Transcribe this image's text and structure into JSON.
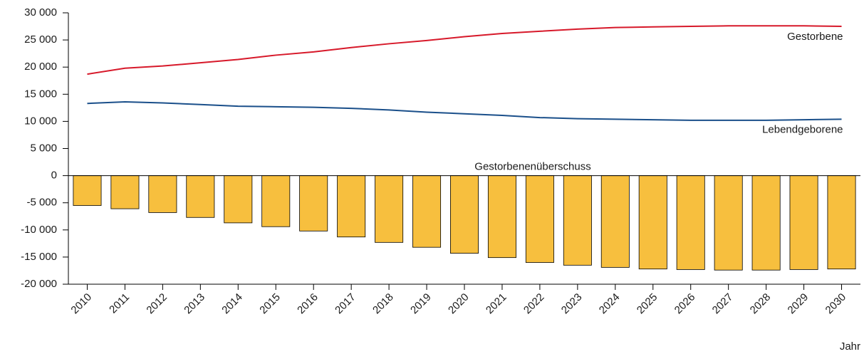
{
  "chart_data": {
    "type": "bar",
    "x_label": "Jahr",
    "categories": [
      "2010",
      "2011",
      "2012",
      "2013",
      "2014",
      "2015",
      "2016",
      "2017",
      "2018",
      "2019",
      "2020",
      "2021",
      "2022",
      "2023",
      "2024",
      "2025",
      "2026",
      "2027",
      "2028",
      "2029",
      "2030"
    ],
    "series": [
      {
        "name": "Gestorbenenüberschuss",
        "type": "bar",
        "color": "#f7bf3e",
        "values": [
          -5500,
          -6100,
          -6800,
          -7700,
          -8700,
          -9400,
          -10200,
          -11300,
          -12300,
          -13200,
          -14300,
          -15100,
          -16000,
          -16500,
          -16900,
          -17200,
          -17300,
          -17400,
          -17400,
          -17300,
          -17200
        ]
      },
      {
        "name": "Gestorbene",
        "type": "line",
        "color": "#d7192a",
        "values": [
          18700,
          19800,
          20200,
          20800,
          21400,
          22200,
          22800,
          23600,
          24300,
          24900,
          25600,
          26200,
          26600,
          27000,
          27300,
          27400,
          27500,
          27600,
          27600,
          27600,
          27500
        ]
      },
      {
        "name": "Lebendgeborene",
        "type": "line",
        "color": "#1a4f8a",
        "values": [
          13300,
          13600,
          13400,
          13100,
          12800,
          12700,
          12600,
          12400,
          12100,
          11700,
          11400,
          11100,
          10700,
          10500,
          10400,
          10300,
          10200,
          10200,
          10200,
          10300,
          10400
        ]
      }
    ],
    "ylim": [
      -20000,
      30000
    ],
    "yticks": [
      {
        "value": -20000,
        "label": "-20 000"
      },
      {
        "value": -15000,
        "label": "-15 000"
      },
      {
        "value": -10000,
        "label": "-10 000"
      },
      {
        "value": -5000,
        "label": "-5 000"
      },
      0,
      {
        "value": 5000,
        "label": "5 000"
      },
      {
        "value": 10000,
        "label": "10 000"
      },
      {
        "value": 15000,
        "label": "15 000"
      },
      {
        "value": 20000,
        "label": "20 000"
      },
      {
        "value": 25000,
        "label": "25 000"
      },
      {
        "value": 30000,
        "label": "30 000"
      }
    ]
  }
}
